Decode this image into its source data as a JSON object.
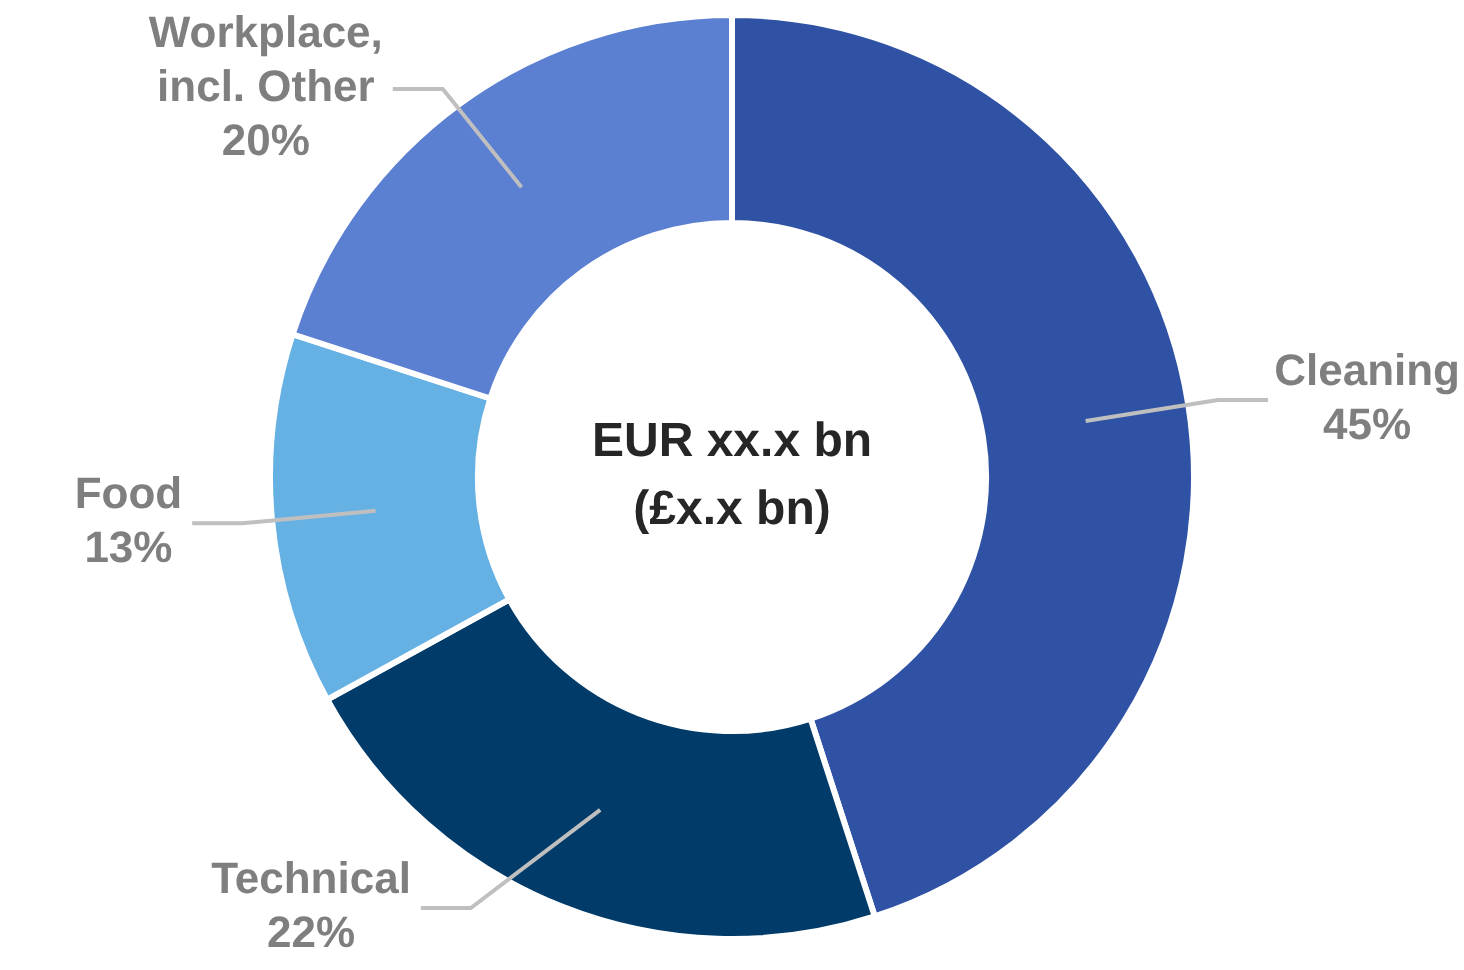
{
  "chart_data": {
    "type": "donut",
    "categories": [
      "Cleaning",
      "Technical",
      "Food",
      "Workplace, incl. Other"
    ],
    "values": [
      45,
      22,
      13,
      20
    ],
    "colors": [
      "#2f52a4",
      "#003b69",
      "#66b1e3",
      "#5b7fd1"
    ],
    "value_labels": [
      "45%",
      "22%",
      "13%",
      "20%"
    ],
    "legend": false,
    "annotations": [
      "EUR xx.x bn",
      "(£x.x bn)"
    ]
  }
}
